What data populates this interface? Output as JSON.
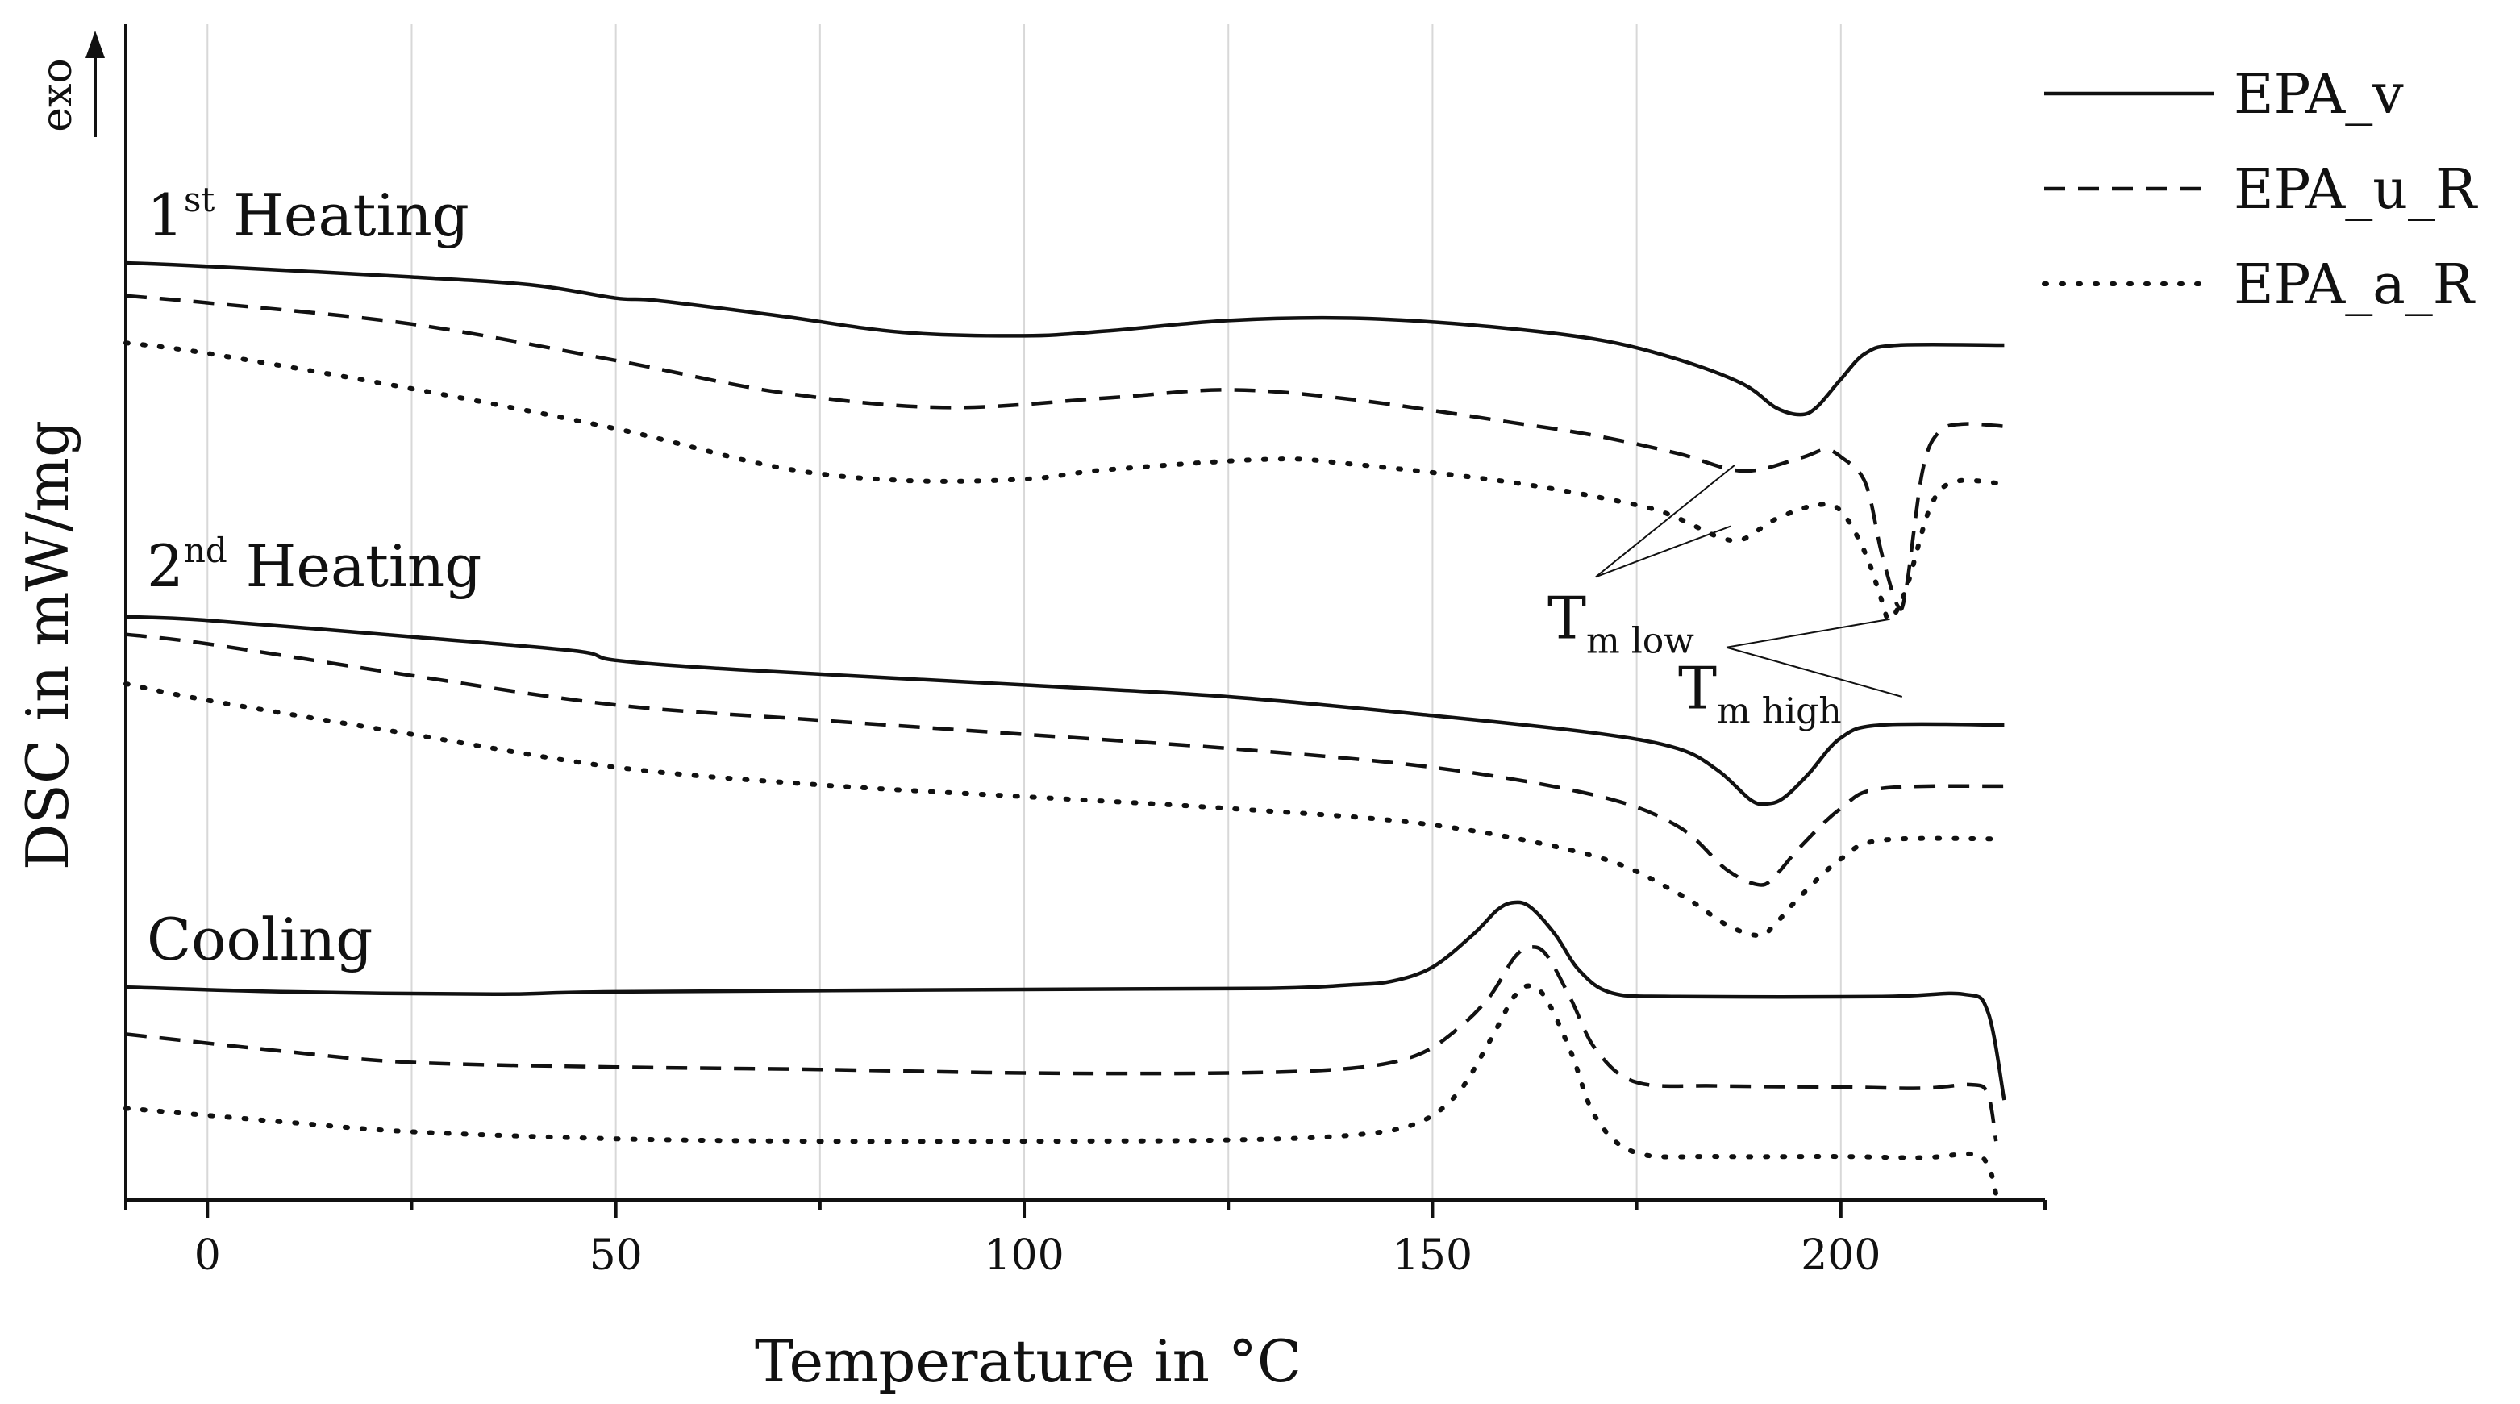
{
  "chart_data": {
    "type": "line",
    "xlabel": "Temperature in °C",
    "ylabel": "DSC in mW/mg",
    "y_direction_label": "exo",
    "xlim": [
      -10,
      225
    ],
    "x_ticks": [
      0,
      50,
      100,
      150,
      200
    ],
    "x_minor_ticks": [
      25,
      75,
      125,
      175
    ],
    "grid": "vertical",
    "legend_position": "top-right",
    "y_ticks_shown": false,
    "y_units": "relative (vertical position, offset curves, 0 = bottom of plot, 100 = top)",
    "legend": [
      {
        "label": "EPA_v",
        "style": "solid",
        "color": "#111111"
      },
      {
        "label": "EPA_u_R",
        "style": "dashed",
        "color": "#111111"
      },
      {
        "label": "EPA_a_R",
        "style": "dotted",
        "color": "#111111"
      }
    ],
    "panels": [
      {
        "label_base": "1",
        "label_sup": "st",
        "label_rest": " Heating",
        "series": [
          {
            "name": "EPA_v",
            "style": "solid",
            "points": [
              [
                -10,
                79.7
              ],
              [
                0,
                79.4
              ],
              [
                25,
                78.5
              ],
              [
                40,
                77.8
              ],
              [
                50,
                76.7
              ],
              [
                55,
                76.5
              ],
              [
                70,
                75.2
              ],
              [
                85,
                73.8
              ],
              [
                100,
                73.5
              ],
              [
                110,
                73.9
              ],
              [
                125,
                74.8
              ],
              [
                140,
                75.0
              ],
              [
                155,
                74.4
              ],
              [
                170,
                73.2
              ],
              [
                180,
                71.5
              ],
              [
                188,
                69.4
              ],
              [
                192,
                67.4
              ],
              [
                195,
                66.8
              ],
              [
                197,
                67.4
              ],
              [
                200,
                69.8
              ],
              [
                203,
                72.0
              ],
              [
                207,
                72.7
              ],
              [
                220,
                72.7
              ]
            ]
          },
          {
            "name": "EPA_u_R",
            "style": "dashed",
            "points": [
              [
                -10,
                76.9
              ],
              [
                0,
                76.3
              ],
              [
                25,
                74.5
              ],
              [
                50,
                71.4
              ],
              [
                70,
                68.7
              ],
              [
                90,
                67.4
              ],
              [
                110,
                68.2
              ],
              [
                125,
                68.9
              ],
              [
                140,
                68.1
              ],
              [
                160,
                66.1
              ],
              [
                170,
                65.0
              ],
              [
                180,
                63.5
              ],
              [
                188,
                62.0
              ],
              [
                195,
                63.1
              ],
              [
                198,
                63.8
              ],
              [
                200,
                63.2
              ],
              [
                203,
                61.0
              ],
              [
                205,
                55.0
              ],
              [
                207,
                50.5
              ],
              [
                208,
                52.0
              ],
              [
                210,
                62.0
              ],
              [
                212,
                65.3
              ],
              [
                215,
                66.0
              ],
              [
                220,
                65.8
              ]
            ]
          },
          {
            "name": "EPA_a_R",
            "style": "dotted",
            "points": [
              [
                -10,
                72.9
              ],
              [
                0,
                72.0
              ],
              [
                25,
                69.0
              ],
              [
                50,
                65.6
              ],
              [
                70,
                62.3
              ],
              [
                85,
                61.2
              ],
              [
                100,
                61.3
              ],
              [
                110,
                62.1
              ],
              [
                130,
                63.0
              ],
              [
                140,
                62.6
              ],
              [
                160,
                61.0
              ],
              [
                175,
                59.1
              ],
              [
                180,
                58.0
              ],
              [
                185,
                56.4
              ],
              [
                188,
                56.2
              ],
              [
                192,
                57.9
              ],
              [
                197,
                59.1
              ],
              [
                200,
                58.6
              ],
              [
                203,
                55.0
              ],
              [
                205,
                51.0
              ],
              [
                206,
                49.4
              ],
              [
                208,
                52.0
              ],
              [
                211,
                59.0
              ],
              [
                214,
                61.1
              ],
              [
                220,
                60.9
              ]
            ]
          }
        ]
      },
      {
        "label_base": "2",
        "label_sup": "nd",
        "label_rest": " Heating",
        "series": [
          {
            "name": "EPA_v",
            "style": "solid",
            "points": [
              [
                -10,
                49.6
              ],
              [
                0,
                49.3
              ],
              [
                25,
                47.9
              ],
              [
                45,
                46.7
              ],
              [
                50,
                45.9
              ],
              [
                65,
                45.1
              ],
              [
                100,
                43.8
              ],
              [
                125,
                42.8
              ],
              [
                150,
                41.2
              ],
              [
                170,
                39.7
              ],
              [
                180,
                38.4
              ],
              [
                185,
                36.5
              ],
              [
                189,
                34.0
              ],
              [
                191,
                33.7
              ],
              [
                193,
                34.2
              ],
              [
                196,
                36.2
              ],
              [
                200,
                39.3
              ],
              [
                205,
                40.4
              ],
              [
                220,
                40.4
              ]
            ]
          },
          {
            "name": "EPA_u_R",
            "style": "dashed",
            "points": [
              [
                -10,
                48.1
              ],
              [
                0,
                47.3
              ],
              [
                25,
                44.6
              ],
              [
                50,
                42.1
              ],
              [
                75,
                40.8
              ],
              [
                100,
                39.6
              ],
              [
                125,
                38.4
              ],
              [
                150,
                36.8
              ],
              [
                170,
                34.4
              ],
              [
                180,
                31.8
              ],
              [
                186,
                28.1
              ],
              [
                190,
                26.8
              ],
              [
                192,
                27.6
              ],
              [
                195,
                30.0
              ],
              [
                200,
                33.3
              ],
              [
                205,
                35.0
              ],
              [
                220,
                35.2
              ]
            ]
          },
          {
            "name": "EPA_a_R",
            "style": "dotted",
            "points": [
              [
                -10,
                43.9
              ],
              [
                0,
                42.5
              ],
              [
                25,
                39.6
              ],
              [
                50,
                36.8
              ],
              [
                75,
                35.3
              ],
              [
                100,
                34.3
              ],
              [
                125,
                33.3
              ],
              [
                150,
                31.9
              ],
              [
                170,
                29.2
              ],
              [
                180,
                26.1
              ],
              [
                186,
                23.4
              ],
              [
                190,
                22.5
              ],
              [
                192,
                23.5
              ],
              [
                195,
                25.8
              ],
              [
                200,
                29.0
              ],
              [
                205,
                30.6
              ],
              [
                220,
                30.7
              ]
            ]
          }
        ]
      },
      {
        "label_base": "Cooling",
        "label_sup": "",
        "label_rest": "",
        "series": [
          {
            "name": "EPA_v",
            "style": "solid",
            "points": [
              [
                -10,
                18.1
              ],
              [
                10,
                17.7
              ],
              [
                35,
                17.5
              ],
              [
                50,
                17.7
              ],
              [
                100,
                17.9
              ],
              [
                130,
                18.0
              ],
              [
                140,
                18.3
              ],
              [
                145,
                18.6
              ],
              [
                150,
                19.8
              ],
              [
                155,
                22.6
              ],
              [
                158,
                24.7
              ],
              [
                160,
                25.3
              ],
              [
                162,
                24.9
              ],
              [
                165,
                22.6
              ],
              [
                168,
                19.5
              ],
              [
                172,
                17.6
              ],
              [
                180,
                17.3
              ],
              [
                205,
                17.3
              ],
              [
                215,
                17.5
              ],
              [
                218,
                16.0
              ],
              [
                220,
                8.5
              ]
            ]
          },
          {
            "name": "EPA_u_R",
            "style": "dashed",
            "points": [
              [
                -10,
                14.1
              ],
              [
                10,
                12.6
              ],
              [
                25,
                11.7
              ],
              [
                50,
                11.3
              ],
              [
                75,
                11.1
              ],
              [
                100,
                10.8
              ],
              [
                125,
                10.8
              ],
              [
                140,
                11.2
              ],
              [
                148,
                12.3
              ],
              [
                153,
                14.5
              ],
              [
                157,
                17.3
              ],
              [
                160,
                20.6
              ],
              [
                162,
                21.5
              ],
              [
                164,
                20.8
              ],
              [
                167,
                17.0
              ],
              [
                170,
                12.8
              ],
              [
                175,
                10.0
              ],
              [
                185,
                9.7
              ],
              [
                200,
                9.6
              ],
              [
                210,
                9.5
              ],
              [
                216,
                9.8
              ],
              [
                218,
                9.0
              ],
              [
                219,
                5.0
              ]
            ]
          },
          {
            "name": "EPA_a_R",
            "style": "dotted",
            "points": [
              [
                -10,
                7.8
              ],
              [
                10,
                6.6
              ],
              [
                25,
                5.8
              ],
              [
                50,
                5.2
              ],
              [
                75,
                5.0
              ],
              [
                100,
                5.0
              ],
              [
                125,
                5.1
              ],
              [
                140,
                5.5
              ],
              [
                148,
                6.5
              ],
              [
                153,
                9.0
              ],
              [
                157,
                13.5
              ],
              [
                160,
                17.3
              ],
              [
                162,
                18.2
              ],
              [
                164,
                17.0
              ],
              [
                167,
                12.5
              ],
              [
                170,
                7.0
              ],
              [
                175,
                4.0
              ],
              [
                185,
                3.7
              ],
              [
                200,
                3.7
              ],
              [
                210,
                3.6
              ],
              [
                216,
                3.9
              ],
              [
                218,
                3.0
              ],
              [
                219,
                0.5
              ]
            ]
          }
        ]
      }
    ],
    "annotations": [
      {
        "text": "T",
        "subscript": "m low",
        "anchor": [
          170,
          53
        ],
        "targets": [
          [
            187,
            62.5
          ],
          [
            186.5,
            57.3
          ]
        ]
      },
      {
        "text": "T",
        "subscript": "m high",
        "anchor": [
          186,
          47
        ],
        "targets": [
          [
            206,
            49.4
          ],
          [
            207.5,
            42.8
          ]
        ]
      }
    ]
  }
}
